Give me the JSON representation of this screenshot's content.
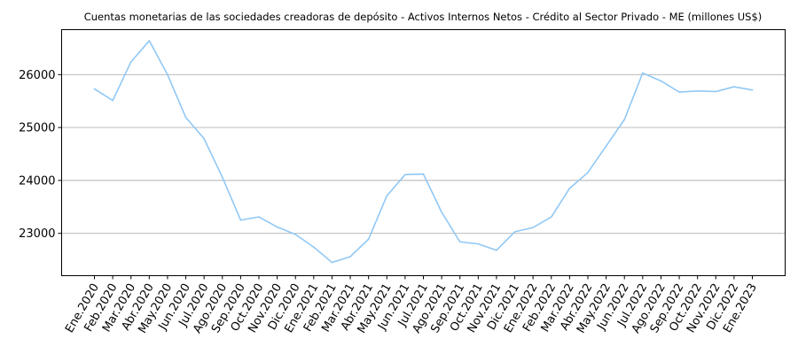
{
  "chart_data": {
    "type": "line",
    "title": "Cuentas monetarias de las sociedades creadoras de depósito - Activos Internos Netos - Crédito al Sector Privado - ME (millones US$)",
    "xlabel": "",
    "ylabel": "",
    "ylim": [
      22200,
      26850
    ],
    "yticks": [
      23000,
      24000,
      25000,
      26000
    ],
    "grid": "y",
    "line_color": "#90c8f5",
    "categories": [
      "Ene.2020",
      "Feb.2020",
      "Mar.2020",
      "Abr.2020",
      "May.2020",
      "Jun.2020",
      "Jul.2020",
      "Ago.2020",
      "Sep.2020",
      "Oct.2020",
      "Nov.2020",
      "Dic.2020",
      "Ene.2021",
      "Feb.2021",
      "Mar.2021",
      "Abr.2021",
      "May.2021",
      "Jun.2021",
      "Jul.2021",
      "Ago.2021",
      "Sep.2021",
      "Oct.2021",
      "Nov.2021",
      "Dic.2021",
      "Ene.2022",
      "Feb.2022",
      "Mar.2022",
      "Abr.2022",
      "May.2022",
      "Jun.2022",
      "Jul.2022",
      "Ago.2022",
      "Sep.2022",
      "Oct.2022",
      "Nov.2022",
      "Dic.2022",
      "Ene.2023"
    ],
    "values": [
      25730,
      25510,
      26240,
      26640,
      26000,
      25190,
      24790,
      24060,
      23250,
      23310,
      23120,
      22980,
      22740,
      22450,
      22560,
      22890,
      23710,
      24110,
      24120,
      23400,
      22840,
      22800,
      22680,
      23030,
      23110,
      23310,
      23850,
      24150,
      24650,
      25150,
      26030,
      25880,
      25670,
      25690,
      25680,
      25770,
      25710
    ]
  }
}
